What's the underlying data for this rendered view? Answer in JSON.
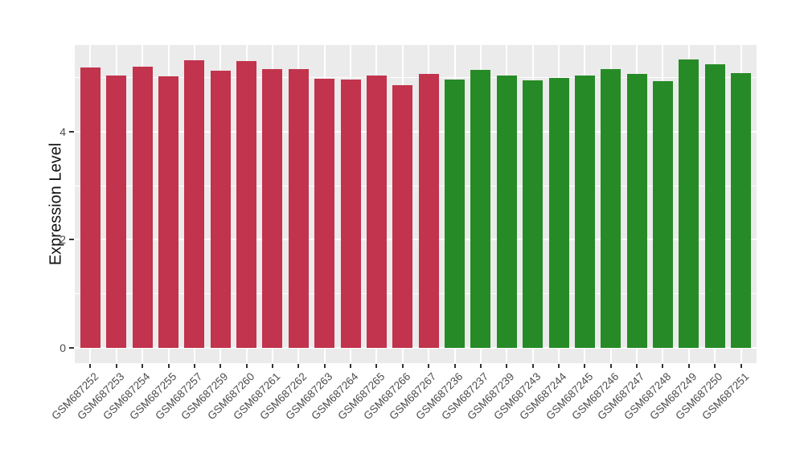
{
  "chart_data": {
    "type": "bar",
    "title": "",
    "xlabel": "",
    "ylabel": "Expression Level",
    "yticks": [
      0,
      2,
      4
    ],
    "yticks_minor": [
      1,
      3,
      5
    ],
    "ylim": [
      0,
      5.6
    ],
    "grid": "on",
    "legend": "none",
    "panel_bg": "#EBEBEB",
    "grid_color": "#FFFFFF",
    "tick_color": "#333333",
    "tick_label_color": "#4D4D4D",
    "group_colors": {
      "red": "#C2334D",
      "green": "#268B26"
    },
    "categories": [
      "GSM687252",
      "GSM687253",
      "GSM687254",
      "GSM687255",
      "GSM687257",
      "GSM687259",
      "GSM687260",
      "GSM687261",
      "GSM687262",
      "GSM687263",
      "GSM687264",
      "GSM687265",
      "GSM687266",
      "GSM687267",
      "GSM687236",
      "GSM687237",
      "GSM687239",
      "GSM687243",
      "GSM687244",
      "GSM687245",
      "GSM687246",
      "GSM687247",
      "GSM687248",
      "GSM687249",
      "GSM687250",
      "GSM687251"
    ],
    "values": [
      5.18,
      5.04,
      5.2,
      5.02,
      5.32,
      5.13,
      5.31,
      5.16,
      5.15,
      4.98,
      4.97,
      5.03,
      4.86,
      5.07,
      4.97,
      5.14,
      5.04,
      4.95,
      5.0,
      5.03,
      5.16,
      5.07,
      4.94,
      5.33,
      5.24,
      5.08
    ],
    "groups": [
      "red",
      "red",
      "red",
      "red",
      "red",
      "red",
      "red",
      "red",
      "red",
      "red",
      "red",
      "red",
      "red",
      "red",
      "green",
      "green",
      "green",
      "green",
      "green",
      "green",
      "green",
      "green",
      "green",
      "green",
      "green",
      "green"
    ]
  }
}
